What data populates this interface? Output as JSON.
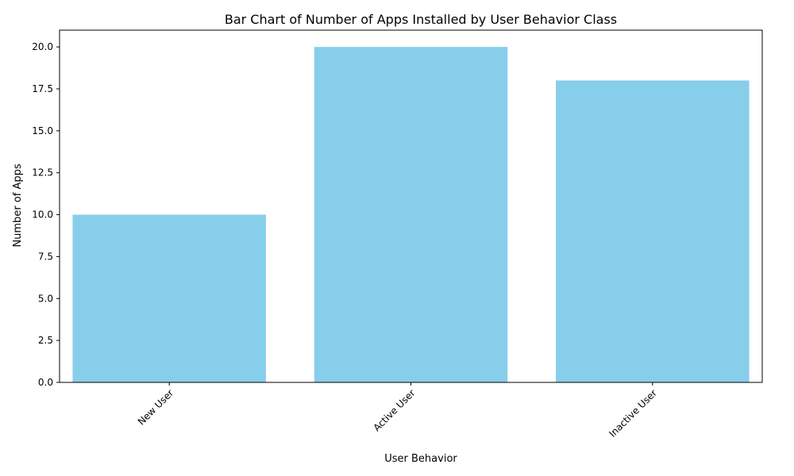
{
  "chart_data": {
    "type": "bar",
    "title": "Bar Chart of Number of Apps Installed by User Behavior Class",
    "xlabel": "User Behavior",
    "ylabel": "Number of Apps",
    "categories": [
      "New User",
      "Active User",
      "Inactive User"
    ],
    "values": [
      10,
      20,
      18
    ],
    "ylim": [
      0,
      21
    ],
    "yticks": [
      "0.0",
      "2.5",
      "5.0",
      "7.5",
      "10.0",
      "12.5",
      "15.0",
      "17.5",
      "20.0"
    ],
    "xtick_rotation_deg": 45,
    "bar_color": "#87ceeb",
    "grid": false,
    "legend": "none"
  }
}
